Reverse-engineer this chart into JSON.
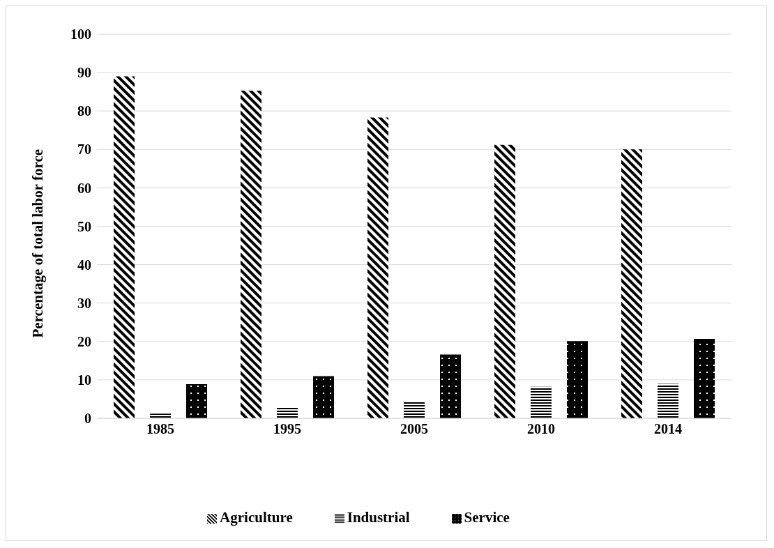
{
  "chart_data": {
    "type": "bar",
    "ylabel": "Percentage of total labor force",
    "categories": [
      "1985",
      "1995",
      "2005",
      "2010",
      "2014"
    ],
    "series": [
      {
        "name": "Agriculture",
        "color": "#000000",
        "values": [
          89,
          85.3,
          78.3,
          71.2,
          70
        ]
      },
      {
        "name": "Industrial",
        "color": "#000000",
        "values": [
          1.2,
          3,
          4.5,
          8.2,
          9
        ]
      },
      {
        "name": "Service",
        "color": "#000000",
        "values": [
          8.9,
          11,
          16.6,
          20.1,
          20.7
        ]
      }
    ],
    "ylim": [
      0,
      100
    ],
    "yticks": [
      0,
      10,
      20,
      30,
      40,
      50,
      60,
      70,
      80,
      90,
      100
    ],
    "grid": "y",
    "legend": "bottom"
  }
}
